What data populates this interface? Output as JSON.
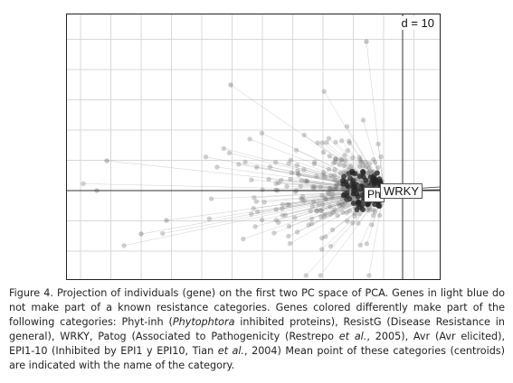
{
  "figure": {
    "scale_label": "d = 10",
    "centroid_labels": [
      {
        "name": "Phyt-inh",
        "visible": "Ph"
      },
      {
        "name": "WRKY",
        "visible": "WRKY"
      }
    ],
    "colors": {
      "point": "#6d6d6d",
      "dark_point": "#262626",
      "line": "#9a9a9a",
      "grid": "#d8d8d8",
      "axis": "#333333"
    }
  },
  "caption": {
    "p1": "Figure 4. Projection of individuals (gene) on the first two PC space of PCA. Genes in light blue do not make part of a known resistance categories. Genes colored differently make part of the following categories: Phyt-inh (",
    "p1_italic": "Phytophtora",
    "p2": " inhibited proteins), ResistG (Disease Resistance in general), WRKY, Patog (Associated to Pathogenicity (Restrepo ",
    "p2_italic": "et al.",
    "p3": ", 2005), Avr (Avr elicited), EPI1-10 (Inhibited by EPI1 y EPI10, Tian ",
    "p3_italic": "et al.",
    "p4": ", 2004) Mean point of these categories (centroids) are indicated with the name of the category."
  }
}
